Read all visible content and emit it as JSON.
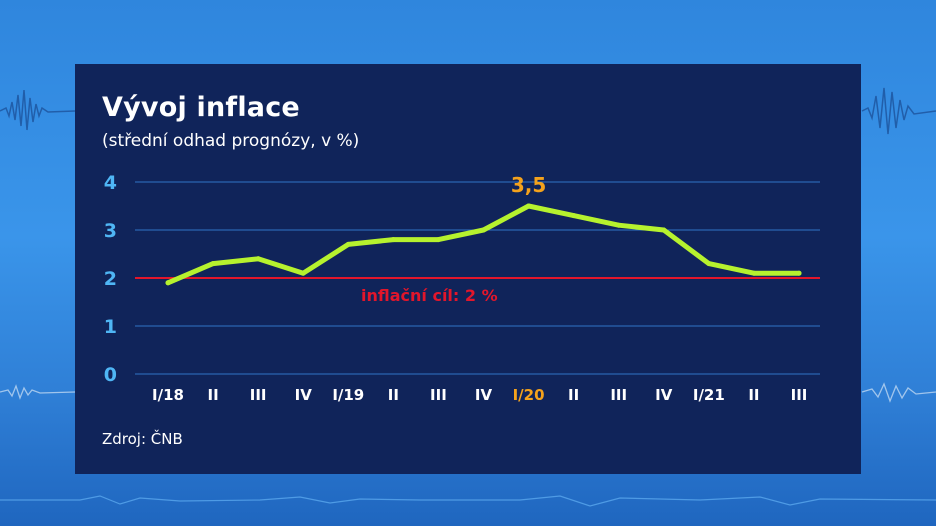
{
  "colors": {
    "panel": "#10245a",
    "grid": "#2f73c6",
    "axis_text": "#4fb6f5",
    "line": "#b6f22e",
    "target": "#e2162b",
    "highlight": "#f4a21c"
  },
  "chart_data": {
    "type": "line",
    "title": "Vývoj inflace",
    "subtitle": "(střední odhad prognózy, v %)",
    "xlabel": "",
    "ylabel": "",
    "categories": [
      "I/18",
      "II",
      "III",
      "IV",
      "I/19",
      "II",
      "III",
      "IV",
      "I/20",
      "II",
      "III",
      "IV",
      "I/21",
      "II",
      "III"
    ],
    "highlight_category_index": 8,
    "series": [
      {
        "name": "Inflace",
        "values": [
          1.9,
          2.3,
          2.4,
          2.1,
          2.7,
          2.8,
          2.8,
          3.0,
          3.5,
          3.3,
          3.1,
          3.0,
          2.3,
          2.1,
          2.1
        ]
      }
    ],
    "ylim": [
      0,
      4
    ],
    "yticks": [
      "0",
      "1",
      "2",
      "3",
      "4"
    ],
    "grid": true,
    "annotations": [
      {
        "label": "3,5",
        "category_index": 8,
        "value": 3.5
      }
    ],
    "target": {
      "value": 2,
      "label": "inflační cíl: 2 %"
    },
    "source": "Zdroj: ČNB"
  }
}
